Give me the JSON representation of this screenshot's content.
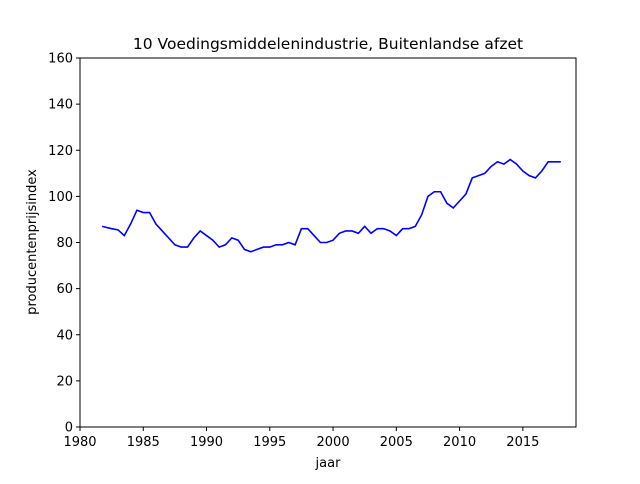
{
  "chart_data": {
    "type": "line",
    "title": "10 Voedingsmiddelenindustrie, Buitenlandse afzet",
    "x_label": "jaar",
    "y_label": "producentenprijsindex",
    "color": "#0000ff",
    "x": [
      1981.75,
      1982.5,
      1983,
      1983.5,
      1984,
      1984.5,
      1985,
      1985.5,
      1986,
      1986.5,
      1987,
      1987.5,
      1988,
      1988.5,
      1989,
      1989.5,
      1990,
      1990.5,
      1991,
      1991.5,
      1992,
      1992.5,
      1993,
      1993.5,
      1994,
      1994.5,
      1995,
      1995.5,
      1996,
      1996.5,
      1997,
      1997.5,
      1998,
      1998.5,
      1999,
      1999.5,
      2000,
      2000.5,
      2001,
      2001.5,
      2002,
      2002.5,
      2003,
      2003.5,
      2004,
      2004.5,
      2005,
      2005.5,
      2006,
      2006.5,
      2007,
      2007.5,
      2008,
      2008.5,
      2009,
      2009.5,
      2010,
      2010.5,
      2011,
      2011.5,
      2012,
      2012.5,
      2013,
      2013.5,
      2014,
      2014.5,
      2015,
      2015.5,
      2016,
      2016.5,
      2017,
      2017.5,
      2018
    ],
    "values": [
      87,
      86,
      85.5,
      83,
      88,
      94,
      93,
      93,
      88,
      85,
      82,
      79,
      78,
      78,
      82,
      85,
      83,
      81,
      78,
      79,
      82,
      81,
      77,
      76,
      77,
      78,
      78,
      79,
      79,
      80,
      79,
      86,
      86,
      83,
      80,
      80,
      81,
      84,
      85,
      85,
      84,
      87,
      84,
      86,
      86,
      85,
      83,
      86,
      86,
      87,
      92,
      100,
      102,
      102,
      97,
      95,
      98,
      101,
      108,
      109,
      110,
      113,
      115,
      114,
      116,
      114,
      111,
      109,
      108,
      111,
      115,
      115,
      115
    ],
    "xlim": [
      1980,
      2019.2
    ],
    "xticks": [
      1980,
      1985,
      1990,
      1995,
      2000,
      2005,
      2010,
      2015
    ],
    "ylim": [
      0,
      160
    ],
    "yticks": [
      0,
      20,
      40,
      60,
      80,
      100,
      120,
      140,
      160
    ]
  }
}
